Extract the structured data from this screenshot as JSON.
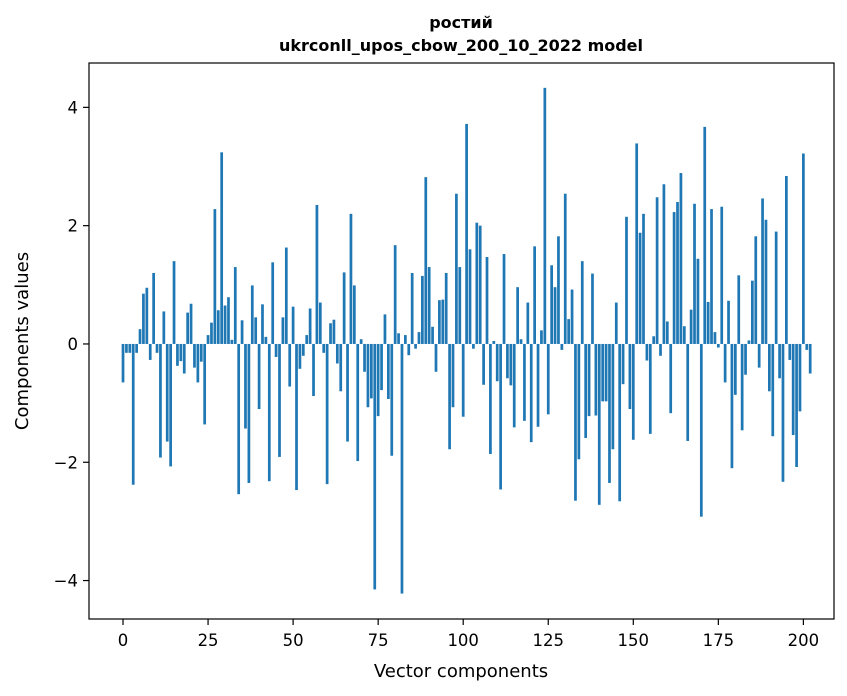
{
  "chart_data": {
    "type": "bar",
    "title": [
      "ростий",
      "ukrconll_upos_cbow_200_10_2022 model"
    ],
    "xlabel": "Vector components",
    "ylabel": "Components values",
    "xlim": [
      -10,
      209
    ],
    "ylim": [
      -4.65,
      4.75
    ],
    "xticks": [
      0,
      25,
      50,
      75,
      100,
      125,
      150,
      175,
      200
    ],
    "yticks": [
      -4,
      -2,
      0,
      2,
      4
    ],
    "ytick_labels": [
      "−4",
      "−2",
      "0",
      "2",
      "4"
    ],
    "bar_color": "#1f77b4",
    "grid": false,
    "values": [
      -0.65,
      -0.15,
      -0.15,
      -2.38,
      -0.15,
      0.25,
      0.85,
      0.95,
      -0.27,
      1.2,
      -0.15,
      -1.92,
      0.55,
      -1.65,
      -2.07,
      1.4,
      -0.37,
      -0.29,
      -0.5,
      0.53,
      0.68,
      -0.4,
      -0.65,
      -0.3,
      -1.36,
      0.15,
      0.36,
      2.28,
      0.57,
      3.24,
      0.65,
      0.79,
      0.07,
      1.3,
      -2.54,
      0.4,
      -1.43,
      -2.35,
      0.99,
      0.45,
      -1.1,
      0.67,
      0.12,
      -2.32,
      1.38,
      -0.22,
      -1.91,
      0.45,
      1.63,
      -0.72,
      0.63,
      -2.47,
      -0.42,
      -0.2,
      0.15,
      0.6,
      -0.88,
      2.35,
      0.7,
      -0.15,
      -2.37,
      0.35,
      0.41,
      -0.33,
      -0.8,
      1.21,
      -1.65,
      2.2,
      0.99,
      -1.98,
      0.08,
      -0.47,
      -1.07,
      -0.92,
      -4.15,
      -1.22,
      -0.78,
      0.5,
      -0.93,
      -1.89,
      1.67,
      0.18,
      -4.22,
      0.15,
      -0.19,
      1.2,
      -0.08,
      0.2,
      1.15,
      2.82,
      1.3,
      0.29,
      -0.47,
      0.74,
      0.75,
      1.2,
      -1.78,
      -1.07,
      2.54,
      1.3,
      -1.23,
      3.72,
      1.6,
      -0.08,
      2.05,
      2.0,
      -0.69,
      1.47,
      -1.86,
      0.05,
      -0.63,
      -2.46,
      1.52,
      -0.58,
      -0.7,
      -1.41,
      0.96,
      0.08,
      -1.3,
      0.7,
      -1.66,
      1.65,
      -1.4,
      0.23,
      4.33,
      -1.19,
      1.33,
      0.96,
      1.82,
      -0.1,
      2.54,
      0.42,
      0.92,
      -2.65,
      -1.95,
      1.4,
      -1.59,
      -1.22,
      1.19,
      -1.21,
      -2.72,
      -0.97,
      -0.97,
      -2.35,
      -1.78,
      0.7,
      -2.66,
      -0.68,
      2.15,
      -1.1,
      -1.62,
      3.39,
      1.88,
      2.2,
      -0.28,
      -1.52,
      0.13,
      2.48,
      -0.2,
      2.7,
      0.38,
      -1.17,
      2.23,
      2.4,
      2.89,
      0.3,
      -1.64,
      0.58,
      2.37,
      1.44,
      -2.92,
      3.67,
      0.71,
      2.28,
      0.2,
      -0.06,
      2.32,
      -0.65,
      0.73,
      -2.1,
      -0.86,
      1.16,
      -1.46,
      -0.52,
      0.06,
      1.07,
      1.82,
      -0.4,
      2.46,
      2.1,
      -0.8,
      -1.56,
      1.9,
      -0.58,
      -2.33,
      2.84,
      -0.27,
      -1.54,
      -2.08,
      -1.14,
      3.22,
      -0.1,
      -0.5
    ]
  }
}
